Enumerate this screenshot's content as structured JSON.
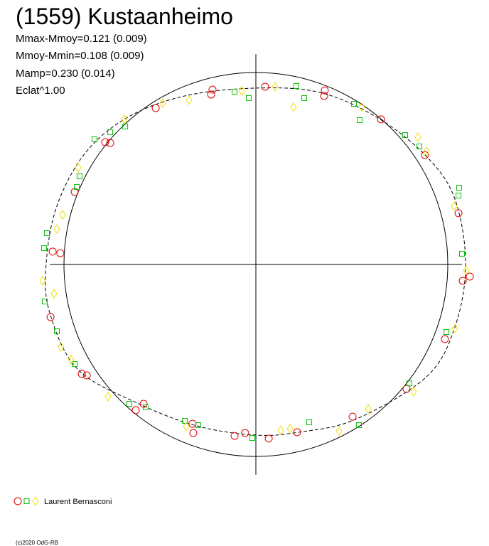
{
  "chart_data": {
    "type": "polar",
    "title": "(1559) Kustaanheimo",
    "annotations": [
      "Mmax-Mmoy=0.121 (0.009)",
      "Mmoy-Mmin=0.108 (0.009)",
      "Mamp=0.230 (0.014)",
      "Eclat^1.00"
    ],
    "footer": "(c)2020 OdG-RB",
    "xlim": [
      -1.074,
      1.074
    ],
    "ylim": [
      -1.096,
      1.096
    ],
    "reference_radius": 1,
    "series": [
      {
        "name": "Laurent Bernasconi",
        "groups": [
          {
            "marker": "circle",
            "color": "#e00000",
            "x": [
              -0.226,
              0.048,
              0.359,
              0.356,
              -0.522,
              -0.759,
              -0.785,
              -0.944,
              -1.059,
              -1.019,
              -1.07,
              -0.907,
              -0.881,
              -0.626,
              -0.585,
              -0.33,
              -0.326,
              -0.111,
              -0.056,
              0.067,
              0.215,
              0.504,
              0.785,
              0.985,
              1.078,
              1.115,
              1.056,
              0.881,
              0.652,
              -0.233
            ],
            "y": [
              0.911,
              0.926,
              0.907,
              0.878,
              0.815,
              0.633,
              0.637,
              0.378,
              0.067,
              0.059,
              -0.274,
              -0.57,
              -0.578,
              -0.759,
              -0.726,
              -0.83,
              -0.878,
              -0.893,
              -0.878,
              -0.907,
              -0.874,
              -0.793,
              -0.648,
              -0.389,
              -0.085,
              -0.063,
              0.267,
              0.57,
              0.756,
              0.885
            ]
          },
          {
            "marker": "square",
            "color": "#00c000",
            "x": [
              -0.037,
              -0.111,
              0.211,
              0.252,
              0.541,
              0.511,
              0.778,
              0.852,
              -0.681,
              -0.759,
              -0.841,
              -0.919,
              -0.933,
              -1.089,
              -1.104,
              -1.1,
              -1.037,
              -0.944,
              -0.659,
              -0.574,
              -0.37,
              -0.3,
              -0.019,
              0.278,
              0.537,
              0.8,
              0.993,
              1.074,
              1.059,
              1.056
            ],
            "y": [
              0.867,
              0.9,
              0.93,
              0.867,
              0.752,
              0.837,
              0.674,
              0.615,
              0.719,
              0.689,
              0.652,
              0.459,
              0.404,
              0.163,
              0.085,
              -0.193,
              -0.348,
              -0.519,
              -0.726,
              -0.744,
              -0.815,
              -0.837,
              -0.904,
              -0.822,
              -0.837,
              -0.619,
              -0.352,
              0.056,
              0.4,
              0.359
            ]
          },
          {
            "marker": "diamond",
            "color": "#f0e000",
            "x": [
              0.1,
              0.196,
              -0.074,
              -0.685,
              -0.926,
              -1.007,
              -1.037,
              -1.111,
              -1.052,
              -1.015,
              -0.963,
              -0.77,
              -0.363,
              0.13,
              0.178,
              0.433,
              0.585,
              0.822,
              1.037,
              1.096,
              0.844,
              0.889,
              -0.348,
              -0.485,
              0.552,
              1.033
            ],
            "y": [
              0.926,
              0.819,
              0.904,
              0.756,
              0.504,
              0.259,
              0.185,
              -0.085,
              -0.152,
              -0.43,
              -0.496,
              -0.689,
              -0.844,
              -0.863,
              -0.856,
              -0.867,
              -0.752,
              -0.663,
              -0.333,
              -0.03,
              0.663,
              0.589,
              0.856,
              0.841,
              0.819,
              0.304
            ]
          }
        ]
      }
    ],
    "fit": {
      "x": [
        0,
        0.333,
        0.63,
        0.889,
        1.037,
        1.093,
        1.037,
        0.889,
        0.519,
        0.222,
        0,
        -0.296,
        -0.593,
        -0.926,
        -1.074,
        -1.093,
        -1.037,
        -0.889,
        -0.667,
        -0.37
      ],
      "y": [
        0.919,
        0.896,
        0.767,
        0.563,
        0.341,
        0,
        -0.326,
        -0.585,
        -0.807,
        -0.874,
        -0.889,
        -0.844,
        -0.733,
        -0.548,
        -0.252,
        0,
        0.304,
        0.581,
        0.767,
        0.878
      ]
    }
  }
}
